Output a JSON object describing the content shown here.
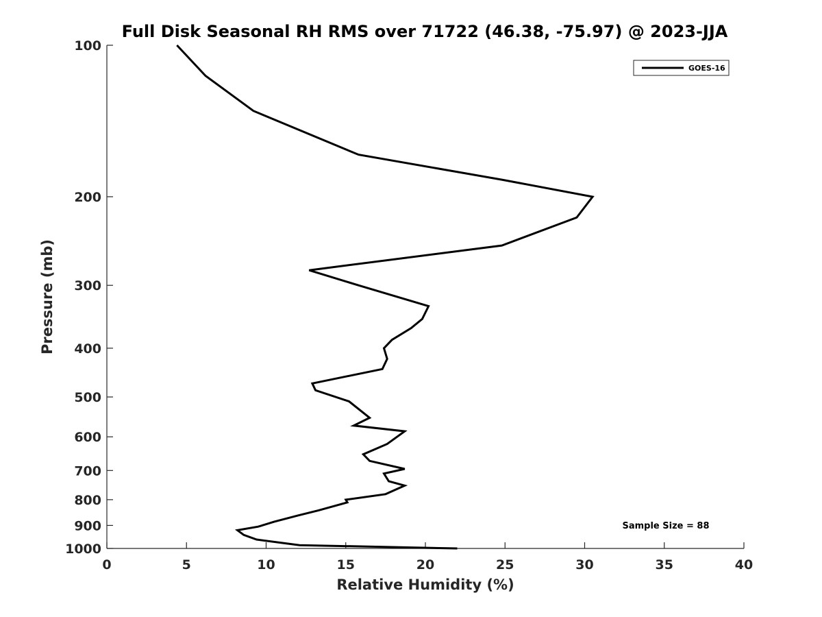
{
  "chart_data": {
    "type": "line",
    "title": "Full Disk Seasonal RH RMS over 71722 (46.38, -75.97) @ 2023-JJA",
    "xlabel": "Relative Humidity (%)",
    "ylabel": "Pressure (mb)",
    "xlim": [
      0,
      40
    ],
    "ylim": [
      100,
      1000
    ],
    "y_scale": "log",
    "y_reversed": true,
    "x_ticks": [
      0,
      5,
      10,
      15,
      20,
      25,
      30,
      35,
      40
    ],
    "y_ticks": [
      100,
      200,
      300,
      400,
      500,
      600,
      700,
      800,
      900,
      1000
    ],
    "grid": false,
    "legend_position": "top-right",
    "annotation": "Sample Size = 88",
    "line_color": "#000000",
    "series": [
      {
        "name": "GOES-16",
        "x": [
          4.4,
          6.2,
          9.2,
          15.8,
          24.8,
          30.5,
          29.5,
          24.8,
          12.7,
          15.8,
          20.2,
          19.8,
          19.1,
          17.9,
          17.4,
          17.6,
          17.3,
          12.9,
          13.1,
          15.2,
          16.5,
          15.5,
          18.7,
          17.6,
          16.1,
          16.5,
          18.7,
          17.4,
          17.7,
          18.7,
          17.5,
          15.0,
          15.1,
          13.3,
          12.0,
          10.5,
          9.5,
          8.2,
          8.6,
          9.4,
          12.1,
          22.0
        ],
        "y": [
          100,
          115,
          135,
          165,
          185,
          200,
          220,
          250,
          280,
          300,
          330,
          350,
          365,
          385,
          400,
          420,
          440,
          470,
          485,
          510,
          550,
          570,
          585,
          620,
          650,
          670,
          695,
          710,
          735,
          750,
          780,
          800,
          810,
          840,
          860,
          885,
          905,
          920,
          940,
          960,
          985,
          1000
        ]
      }
    ]
  }
}
